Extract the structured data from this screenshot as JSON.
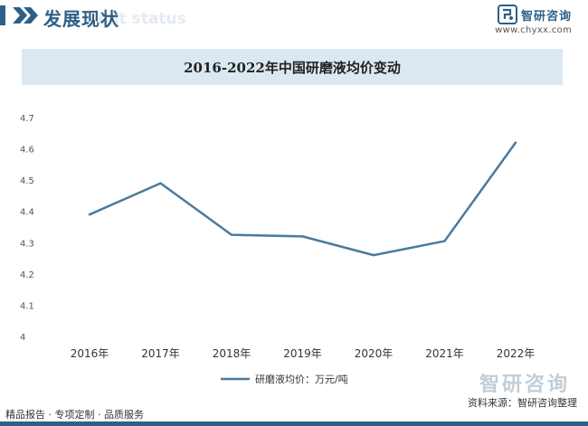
{
  "header": {
    "title": "发展现状",
    "subtitle_ghost": "ent status"
  },
  "brand": {
    "name": "智研咨询",
    "url": "www.chyxx.com"
  },
  "chart_data": {
    "type": "line",
    "title": "2016-2022年中国研磨液均价变动",
    "categories": [
      "2016年",
      "2017年",
      "2018年",
      "2019年",
      "2020年",
      "2021年",
      "2022年"
    ],
    "series": [
      {
        "name": "研磨液均价：万元/吨",
        "values": [
          4.39,
          4.49,
          4.325,
          4.32,
          4.26,
          4.305,
          4.62
        ],
        "color": "#4b7a9c"
      }
    ],
    "ylim": [
      4,
      4.7
    ],
    "yticks": [
      "4",
      "4.1",
      "4.2",
      "4.3",
      "4.4",
      "4.5",
      "4.6",
      "4.7"
    ],
    "grid": false,
    "legend_position": "bottom"
  },
  "footer": {
    "left": "精品报告 · 专项定制 · 品质服务",
    "source": "资料来源：智研咨询整理",
    "brand_name": "智研咨询"
  }
}
